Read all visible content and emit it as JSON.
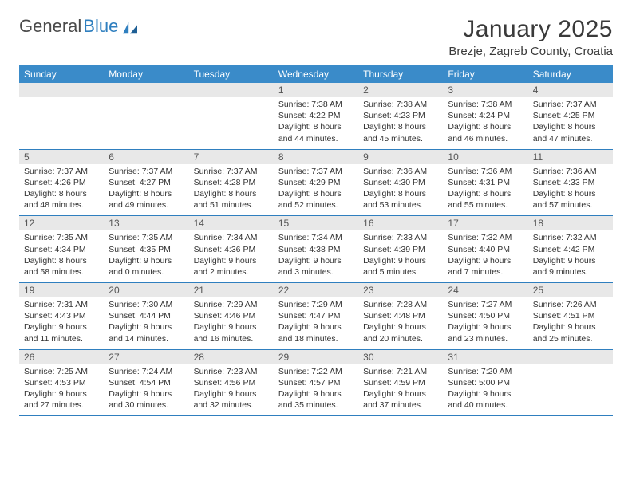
{
  "logo": {
    "text1": "General",
    "text2": "Blue"
  },
  "title": "January 2025",
  "location": "Brezje, Zagreb County, Croatia",
  "day_header_bg": "#3a8bc9",
  "day_header_fg": "#ffffff",
  "rule_color": "#2f7fbf",
  "daynum_bg": "#e8e8e8",
  "days_of_week": [
    "Sunday",
    "Monday",
    "Tuesday",
    "Wednesday",
    "Thursday",
    "Friday",
    "Saturday"
  ],
  "weeks": [
    [
      {
        "n": "",
        "sunrise": "",
        "sunset": "",
        "daylight": ""
      },
      {
        "n": "",
        "sunrise": "",
        "sunset": "",
        "daylight": ""
      },
      {
        "n": "",
        "sunrise": "",
        "sunset": "",
        "daylight": ""
      },
      {
        "n": "1",
        "sunrise": "Sunrise: 7:38 AM",
        "sunset": "Sunset: 4:22 PM",
        "daylight": "Daylight: 8 hours and 44 minutes."
      },
      {
        "n": "2",
        "sunrise": "Sunrise: 7:38 AM",
        "sunset": "Sunset: 4:23 PM",
        "daylight": "Daylight: 8 hours and 45 minutes."
      },
      {
        "n": "3",
        "sunrise": "Sunrise: 7:38 AM",
        "sunset": "Sunset: 4:24 PM",
        "daylight": "Daylight: 8 hours and 46 minutes."
      },
      {
        "n": "4",
        "sunrise": "Sunrise: 7:37 AM",
        "sunset": "Sunset: 4:25 PM",
        "daylight": "Daylight: 8 hours and 47 minutes."
      }
    ],
    [
      {
        "n": "5",
        "sunrise": "Sunrise: 7:37 AM",
        "sunset": "Sunset: 4:26 PM",
        "daylight": "Daylight: 8 hours and 48 minutes."
      },
      {
        "n": "6",
        "sunrise": "Sunrise: 7:37 AM",
        "sunset": "Sunset: 4:27 PM",
        "daylight": "Daylight: 8 hours and 49 minutes."
      },
      {
        "n": "7",
        "sunrise": "Sunrise: 7:37 AM",
        "sunset": "Sunset: 4:28 PM",
        "daylight": "Daylight: 8 hours and 51 minutes."
      },
      {
        "n": "8",
        "sunrise": "Sunrise: 7:37 AM",
        "sunset": "Sunset: 4:29 PM",
        "daylight": "Daylight: 8 hours and 52 minutes."
      },
      {
        "n": "9",
        "sunrise": "Sunrise: 7:36 AM",
        "sunset": "Sunset: 4:30 PM",
        "daylight": "Daylight: 8 hours and 53 minutes."
      },
      {
        "n": "10",
        "sunrise": "Sunrise: 7:36 AM",
        "sunset": "Sunset: 4:31 PM",
        "daylight": "Daylight: 8 hours and 55 minutes."
      },
      {
        "n": "11",
        "sunrise": "Sunrise: 7:36 AM",
        "sunset": "Sunset: 4:33 PM",
        "daylight": "Daylight: 8 hours and 57 minutes."
      }
    ],
    [
      {
        "n": "12",
        "sunrise": "Sunrise: 7:35 AM",
        "sunset": "Sunset: 4:34 PM",
        "daylight": "Daylight: 8 hours and 58 minutes."
      },
      {
        "n": "13",
        "sunrise": "Sunrise: 7:35 AM",
        "sunset": "Sunset: 4:35 PM",
        "daylight": "Daylight: 9 hours and 0 minutes."
      },
      {
        "n": "14",
        "sunrise": "Sunrise: 7:34 AM",
        "sunset": "Sunset: 4:36 PM",
        "daylight": "Daylight: 9 hours and 2 minutes."
      },
      {
        "n": "15",
        "sunrise": "Sunrise: 7:34 AM",
        "sunset": "Sunset: 4:38 PM",
        "daylight": "Daylight: 9 hours and 3 minutes."
      },
      {
        "n": "16",
        "sunrise": "Sunrise: 7:33 AM",
        "sunset": "Sunset: 4:39 PM",
        "daylight": "Daylight: 9 hours and 5 minutes."
      },
      {
        "n": "17",
        "sunrise": "Sunrise: 7:32 AM",
        "sunset": "Sunset: 4:40 PM",
        "daylight": "Daylight: 9 hours and 7 minutes."
      },
      {
        "n": "18",
        "sunrise": "Sunrise: 7:32 AM",
        "sunset": "Sunset: 4:42 PM",
        "daylight": "Daylight: 9 hours and 9 minutes."
      }
    ],
    [
      {
        "n": "19",
        "sunrise": "Sunrise: 7:31 AM",
        "sunset": "Sunset: 4:43 PM",
        "daylight": "Daylight: 9 hours and 11 minutes."
      },
      {
        "n": "20",
        "sunrise": "Sunrise: 7:30 AM",
        "sunset": "Sunset: 4:44 PM",
        "daylight": "Daylight: 9 hours and 14 minutes."
      },
      {
        "n": "21",
        "sunrise": "Sunrise: 7:29 AM",
        "sunset": "Sunset: 4:46 PM",
        "daylight": "Daylight: 9 hours and 16 minutes."
      },
      {
        "n": "22",
        "sunrise": "Sunrise: 7:29 AM",
        "sunset": "Sunset: 4:47 PM",
        "daylight": "Daylight: 9 hours and 18 minutes."
      },
      {
        "n": "23",
        "sunrise": "Sunrise: 7:28 AM",
        "sunset": "Sunset: 4:48 PM",
        "daylight": "Daylight: 9 hours and 20 minutes."
      },
      {
        "n": "24",
        "sunrise": "Sunrise: 7:27 AM",
        "sunset": "Sunset: 4:50 PM",
        "daylight": "Daylight: 9 hours and 23 minutes."
      },
      {
        "n": "25",
        "sunrise": "Sunrise: 7:26 AM",
        "sunset": "Sunset: 4:51 PM",
        "daylight": "Daylight: 9 hours and 25 minutes."
      }
    ],
    [
      {
        "n": "26",
        "sunrise": "Sunrise: 7:25 AM",
        "sunset": "Sunset: 4:53 PM",
        "daylight": "Daylight: 9 hours and 27 minutes."
      },
      {
        "n": "27",
        "sunrise": "Sunrise: 7:24 AM",
        "sunset": "Sunset: 4:54 PM",
        "daylight": "Daylight: 9 hours and 30 minutes."
      },
      {
        "n": "28",
        "sunrise": "Sunrise: 7:23 AM",
        "sunset": "Sunset: 4:56 PM",
        "daylight": "Daylight: 9 hours and 32 minutes."
      },
      {
        "n": "29",
        "sunrise": "Sunrise: 7:22 AM",
        "sunset": "Sunset: 4:57 PM",
        "daylight": "Daylight: 9 hours and 35 minutes."
      },
      {
        "n": "30",
        "sunrise": "Sunrise: 7:21 AM",
        "sunset": "Sunset: 4:59 PM",
        "daylight": "Daylight: 9 hours and 37 minutes."
      },
      {
        "n": "31",
        "sunrise": "Sunrise: 7:20 AM",
        "sunset": "Sunset: 5:00 PM",
        "daylight": "Daylight: 9 hours and 40 minutes."
      },
      {
        "n": "",
        "sunrise": "",
        "sunset": "",
        "daylight": ""
      }
    ]
  ]
}
